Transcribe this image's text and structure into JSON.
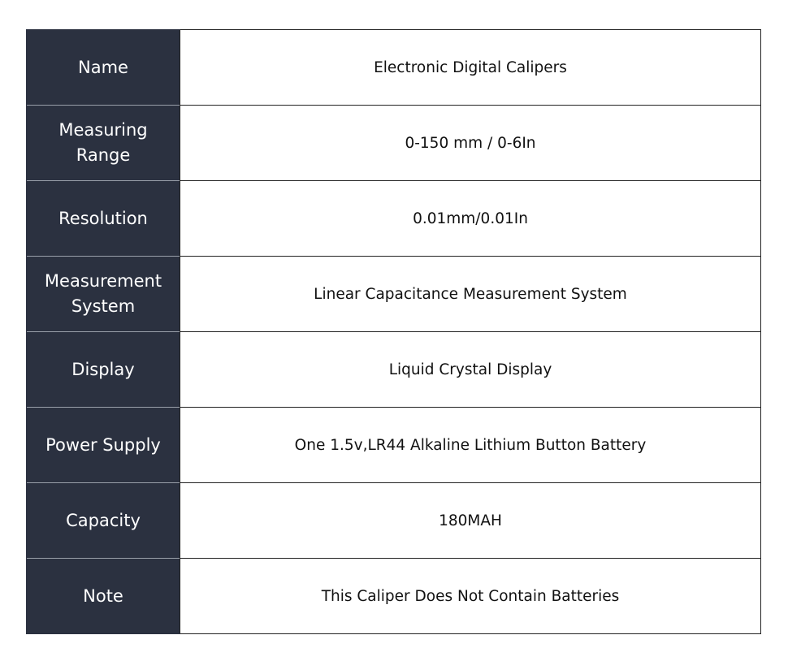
{
  "table": {
    "rows": [
      [
        "Name",
        "Electronic Digital Calipers"
      ],
      [
        "Measuring Range",
        "0-150 mm / 0-6In"
      ],
      [
        "Resolution",
        "0.01mm/0.01In"
      ],
      [
        "Measurement System",
        "Linear Capacitance Measurement System"
      ],
      [
        "Display",
        "Liquid Crystal Display"
      ],
      [
        "Power Supply",
        "One 1.5v,LR44 Alkaline Lithium Button Battery"
      ],
      [
        "Capacity",
        "180MAH"
      ],
      [
        "Note",
        "This Caliper Does Not Contain Batteries"
      ]
    ]
  }
}
